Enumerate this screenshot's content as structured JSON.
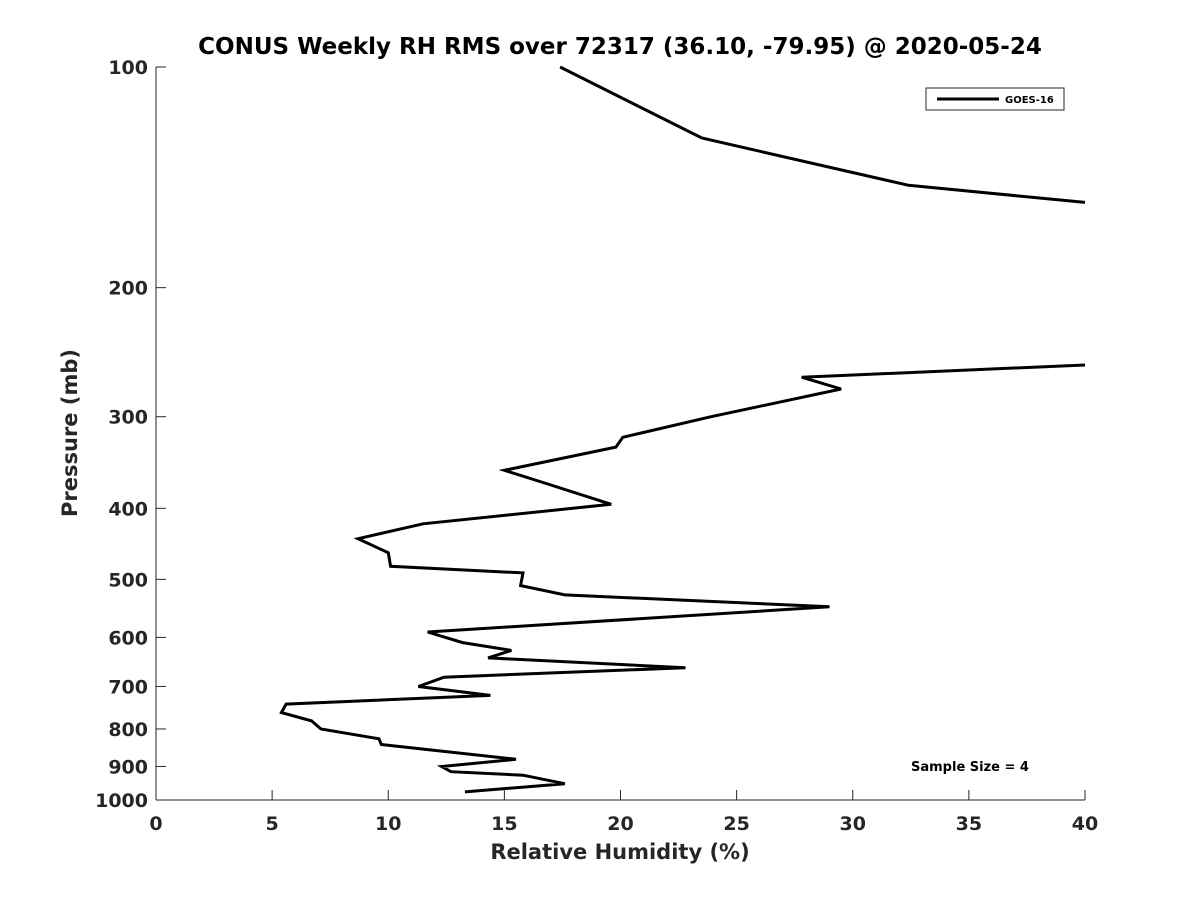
{
  "chart_data": {
    "type": "line",
    "title": "CONUS Weekly RH RMS over 72317 (36.10, -79.95) @ 2020-05-24",
    "xlabel": "Relative Humidity (%)",
    "ylabel": "Pressure (mb)",
    "xlim": [
      0,
      40
    ],
    "ylim": [
      100,
      1000
    ],
    "y_scale": "log",
    "y_reversed": true,
    "x_ticks": [
      0,
      5,
      10,
      15,
      20,
      25,
      30,
      35,
      40
    ],
    "y_ticks": [
      100,
      200,
      300,
      400,
      500,
      600,
      700,
      800,
      900,
      1000
    ],
    "grid": false,
    "legend_position": "top-right",
    "series": [
      {
        "name": "GOES-16",
        "color": "#000000",
        "points": [
          {
            "x": 13.3,
            "y": 975
          },
          {
            "x": 17.6,
            "y": 950
          },
          {
            "x": 15.8,
            "y": 925
          },
          {
            "x": 12.7,
            "y": 915
          },
          {
            "x": 12.3,
            "y": 900
          },
          {
            "x": 15.5,
            "y": 880
          },
          {
            "x": 11.9,
            "y": 855
          },
          {
            "x": 9.7,
            "y": 840
          },
          {
            "x": 9.6,
            "y": 825
          },
          {
            "x": 7.1,
            "y": 800
          },
          {
            "x": 6.7,
            "y": 780
          },
          {
            "x": 5.4,
            "y": 760
          },
          {
            "x": 5.6,
            "y": 740
          },
          {
            "x": 14.4,
            "y": 720
          },
          {
            "x": 11.3,
            "y": 700
          },
          {
            "x": 12.4,
            "y": 680
          },
          {
            "x": 22.8,
            "y": 660
          },
          {
            "x": 14.3,
            "y": 640
          },
          {
            "x": 15.3,
            "y": 625
          },
          {
            "x": 13.2,
            "y": 610
          },
          {
            "x": 11.7,
            "y": 590
          },
          {
            "x": 29.0,
            "y": 545
          },
          {
            "x": 17.6,
            "y": 525
          },
          {
            "x": 15.7,
            "y": 510
          },
          {
            "x": 15.8,
            "y": 490
          },
          {
            "x": 10.1,
            "y": 480
          },
          {
            "x": 10.0,
            "y": 460
          },
          {
            "x": 8.7,
            "y": 440
          },
          {
            "x": 11.5,
            "y": 420
          },
          {
            "x": 19.6,
            "y": 395
          },
          {
            "x": 16.8,
            "y": 370
          },
          {
            "x": 15.0,
            "y": 355
          },
          {
            "x": 19.8,
            "y": 330
          },
          {
            "x": 20.1,
            "y": 320
          },
          {
            "x": 23.9,
            "y": 300
          },
          {
            "x": 29.5,
            "y": 275
          },
          {
            "x": 27.8,
            "y": 265
          },
          {
            "x": 40.0,
            "y": 255
          }
        ]
      },
      {
        "name": "GOES-16",
        "color": "#000000",
        "points": [
          {
            "x": 40.0,
            "y": 153
          },
          {
            "x": 32.4,
            "y": 145
          },
          {
            "x": 23.5,
            "y": 125
          },
          {
            "x": 17.4,
            "y": 100
          }
        ]
      }
    ],
    "legend": [
      "GOES-16"
    ],
    "annotation": "Sample Size = 4"
  }
}
